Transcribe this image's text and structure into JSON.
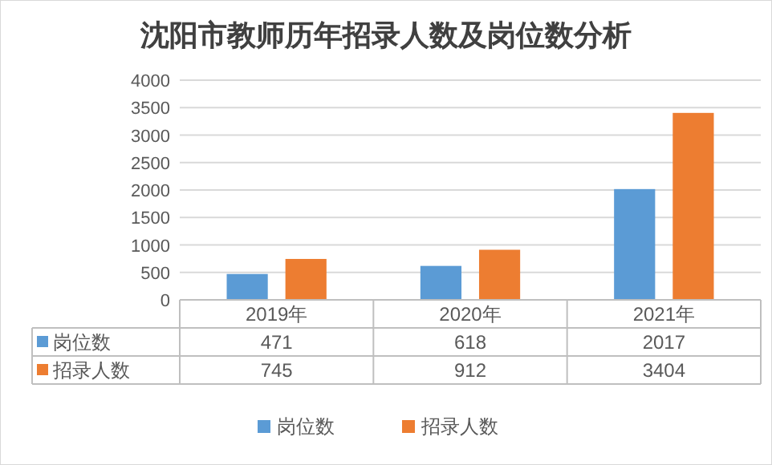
{
  "chart_data": {
    "type": "bar",
    "title": "沈阳市教师历年招录人数及岗位数分析",
    "categories": [
      "2019年",
      "2020年",
      "2021年"
    ],
    "series": [
      {
        "name": "岗位数",
        "color": "#5b9bd5",
        "values": [
          471,
          618,
          2017
        ]
      },
      {
        "name": "招录人数",
        "color": "#ed7d31",
        "values": [
          745,
          912,
          3404
        ]
      }
    ],
    "ylim": [
      0,
      4000
    ],
    "yticks": [
      0,
      500,
      1000,
      1500,
      2000,
      2500,
      3000,
      3500,
      4000
    ],
    "grid": "y",
    "legend": "bottom",
    "data_labels": true
  }
}
